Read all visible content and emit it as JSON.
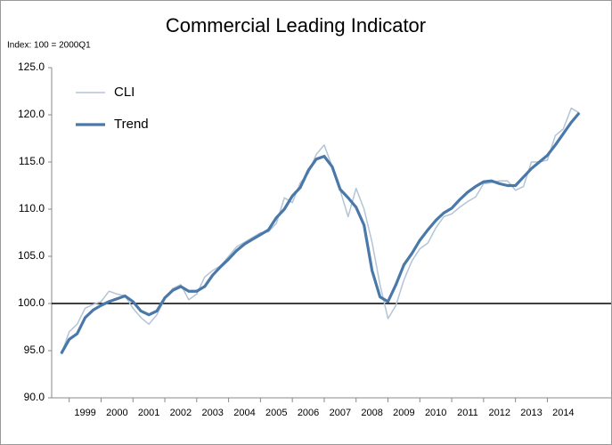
{
  "chart_data": {
    "type": "line",
    "title": "Commercial Leading Indicator",
    "ylabel": "Index: 100 = 2000Q1",
    "x": [
      1998.75,
      1999,
      1999.25,
      1999.5,
      1999.75,
      2000,
      2000.25,
      2000.5,
      2000.75,
      2001,
      2001.25,
      2001.5,
      2001.75,
      2002,
      2002.25,
      2002.5,
      2002.75,
      2003,
      2003.25,
      2003.5,
      2003.75,
      2004,
      2004.25,
      2004.5,
      2004.75,
      2005,
      2005.25,
      2005.5,
      2005.75,
      2006,
      2006.25,
      2006.5,
      2006.75,
      2007,
      2007.25,
      2007.5,
      2007.75,
      2008,
      2008.25,
      2008.5,
      2008.75,
      2009,
      2009.25,
      2009.5,
      2009.75,
      2010,
      2010.25,
      2010.5,
      2010.75,
      2011,
      2011.25,
      2011.5,
      2011.75,
      2012,
      2012.25,
      2012.5,
      2012.75,
      2013,
      2013.25,
      2013.5,
      2013.75,
      2014,
      2014.25,
      2014.5,
      2014.75,
      2015
    ],
    "series": [
      {
        "name": "CLI",
        "color": "#b3c4d6",
        "width": 1.5,
        "values": [
          94.6,
          97.0,
          97.8,
          99.5,
          99.9,
          100.2,
          101.3,
          101.0,
          100.8,
          99.5,
          98.5,
          97.8,
          98.8,
          100.5,
          101.6,
          102.0,
          100.4,
          101.0,
          102.8,
          103.5,
          104.0,
          105.0,
          106.0,
          106.5,
          107.0,
          107.5,
          107.6,
          108.5,
          111.2,
          110.7,
          112.8,
          113.8,
          115.8,
          116.8,
          114.5,
          112.0,
          109.2,
          112.2,
          110.0,
          106.5,
          102.0,
          98.4,
          99.8,
          102.5,
          104.5,
          105.8,
          106.4,
          108.0,
          109.2,
          109.5,
          110.2,
          110.8,
          111.3,
          112.7,
          112.8,
          113.0,
          113.0,
          112.0,
          112.4,
          115.0,
          115.0,
          115.2,
          117.8,
          118.5,
          120.7,
          120.2
        ]
      },
      {
        "name": "Trend",
        "color": "#4a78a8",
        "width": 3.2,
        "values": [
          94.7,
          96.2,
          96.8,
          98.5,
          99.3,
          99.8,
          100.2,
          100.5,
          100.8,
          100.2,
          99.2,
          98.8,
          99.2,
          100.6,
          101.4,
          101.8,
          101.3,
          101.3,
          101.8,
          103.0,
          103.9,
          104.7,
          105.6,
          106.3,
          106.8,
          107.3,
          107.8,
          109.1,
          110.0,
          111.4,
          112.3,
          114.1,
          115.3,
          115.6,
          114.5,
          112.1,
          111.2,
          110.2,
          108.3,
          103.5,
          100.7,
          100.2,
          102.0,
          104.1,
          105.3,
          106.7,
          107.8,
          108.8,
          109.6,
          110.1,
          111.0,
          111.8,
          112.4,
          112.9,
          113.0,
          112.7,
          112.5,
          112.5,
          113.4,
          114.3,
          115.0,
          115.7,
          116.8,
          118.0,
          119.2,
          120.2
        ]
      }
    ],
    "reference_line": 100,
    "xlim": [
      1998.45,
      2016
    ],
    "xticks": [
      {
        "value": 1999,
        "label": "1999"
      },
      {
        "value": 2000,
        "label": "2000"
      },
      {
        "value": 2001,
        "label": "2001"
      },
      {
        "value": 2002,
        "label": "2002"
      },
      {
        "value": 2003,
        "label": "2003"
      },
      {
        "value": 2004,
        "label": "2004"
      },
      {
        "value": 2005,
        "label": "2005"
      },
      {
        "value": 2006,
        "label": "2006"
      },
      {
        "value": 2007,
        "label": "2007"
      },
      {
        "value": 2008,
        "label": "2008"
      },
      {
        "value": 2009,
        "label": "2009"
      },
      {
        "value": 2010,
        "label": "2010"
      },
      {
        "value": 2011,
        "label": "2011"
      },
      {
        "value": 2012,
        "label": "2012"
      },
      {
        "value": 2013,
        "label": "2013"
      },
      {
        "value": 2014,
        "label": "2014"
      }
    ],
    "ylim": [
      90,
      125
    ],
    "yticks": [
      {
        "value": 90,
        "label": "90.0"
      },
      {
        "value": 95,
        "label": "95.0"
      },
      {
        "value": 100,
        "label": "100.0"
      },
      {
        "value": 105,
        "label": "105.0"
      },
      {
        "value": 110,
        "label": "110.0"
      },
      {
        "value": 115,
        "label": "115.0"
      },
      {
        "value": 120,
        "label": "120.0"
      },
      {
        "value": 125,
        "label": "125.0"
      }
    ],
    "legend": "upper left"
  }
}
